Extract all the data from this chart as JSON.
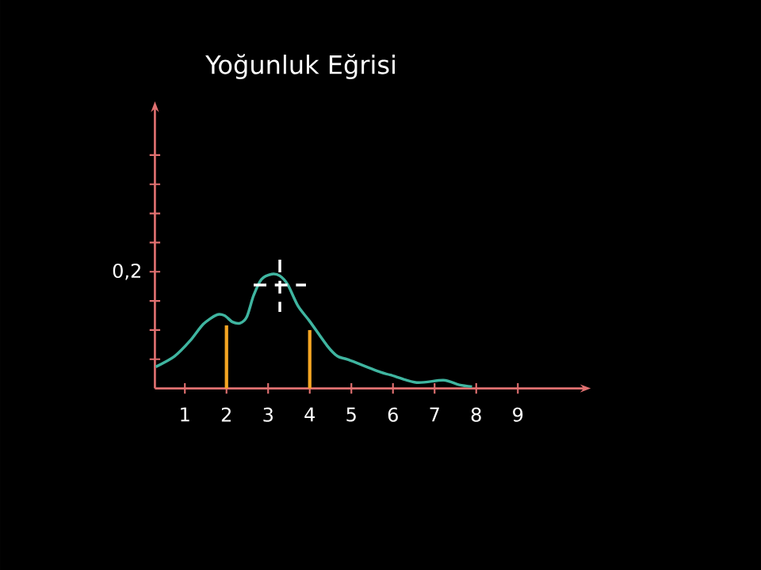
{
  "chart_data": {
    "type": "line",
    "title": "Yoğunluk Eğrisi",
    "xlim": [
      0.28,
      10.5
    ],
    "ylim": [
      0,
      0.474
    ],
    "xticks": [
      1,
      2,
      3,
      4,
      5,
      6,
      7,
      8,
      9
    ],
    "yticks": [
      {
        "value": 0.05,
        "label": null
      },
      {
        "value": 0.1,
        "label": null
      },
      {
        "value": 0.15,
        "label": null
      },
      {
        "value": 0.2,
        "label": "0,2"
      },
      {
        "value": 0.25,
        "label": null
      },
      {
        "value": 0.3,
        "label": null
      },
      {
        "value": 0.35,
        "label": null
      },
      {
        "value": 0.4,
        "label": null
      }
    ],
    "grid": false,
    "series": [
      {
        "color": "#3fb5a0",
        "x": [
          0.3,
          0.75,
          1.13,
          1.44,
          1.76,
          1.95,
          2.14,
          2.33,
          2.49,
          2.65,
          2.84,
          3.09,
          3.28,
          3.47,
          3.72,
          4.0,
          4.42,
          4.67,
          4.93,
          5.69,
          5.94,
          6.57,
          7.21,
          7.59,
          7.9
        ],
        "values": [
          0.037,
          0.055,
          0.082,
          0.11,
          0.126,
          0.125,
          0.114,
          0.112,
          0.123,
          0.159,
          0.187,
          0.196,
          0.193,
          0.178,
          0.141,
          0.115,
          0.073,
          0.055,
          0.049,
          0.028,
          0.023,
          0.01,
          0.014,
          0.006,
          0.003
        ]
      },
      {
        "type": "bar",
        "color": "#f5a623",
        "x": [
          2,
          4
        ],
        "values": [
          0.108,
          0.1
        ]
      }
    ]
  }
}
